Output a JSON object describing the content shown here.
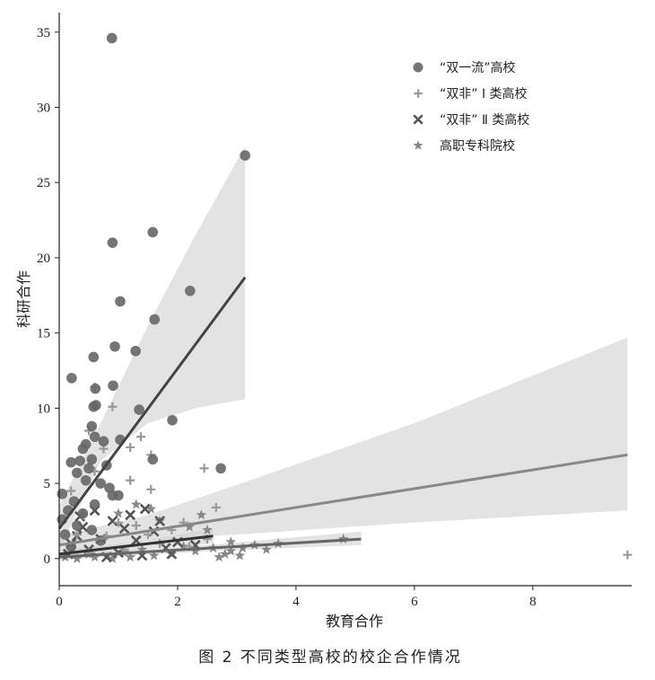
{
  "chart_data": {
    "type": "scatter",
    "title": "",
    "caption": "图 2   不同类型高校的校企合作情况",
    "xlabel": "教育合作",
    "ylabel": "科研合作",
    "xlim": [
      0,
      9.67
    ],
    "ylim": [
      -1.8,
      36.3
    ],
    "xticks": [
      0,
      2,
      4,
      6,
      8
    ],
    "yticks": [
      0,
      5,
      10,
      15,
      20,
      25,
      30,
      35
    ],
    "grid": false,
    "legend_position": "top-right",
    "series": [
      {
        "name": "“双一流”高校",
        "marker": "circle",
        "color": "#666666",
        "line_color": "#444444",
        "fit": [
          [
            0,
            2.0
          ],
          [
            3.14,
            18.7
          ]
        ],
        "ci": [
          [
            0,
            0.5,
            3.5
          ],
          [
            0.7,
            6.5,
            9.0
          ],
          [
            1.5,
            9.0,
            15.5
          ],
          [
            2.3,
            10.0,
            21.5
          ],
          [
            3.14,
            10.6,
            27.4
          ]
        ],
        "points": [
          [
            0.89,
            34.6
          ],
          [
            3.14,
            26.8
          ],
          [
            0.9,
            21.0
          ],
          [
            1.58,
            21.7
          ],
          [
            2.21,
            17.8
          ],
          [
            1.03,
            17.1
          ],
          [
            1.61,
            15.9
          ],
          [
            0.94,
            14.1
          ],
          [
            1.29,
            13.8
          ],
          [
            0.58,
            13.4
          ],
          [
            0.21,
            12.0
          ],
          [
            0.61,
            11.3
          ],
          [
            0.91,
            11.5
          ],
          [
            0.58,
            10.1
          ],
          [
            0.62,
            10.2
          ],
          [
            1.35,
            9.9
          ],
          [
            1.91,
            9.2
          ],
          [
            1.03,
            7.9
          ],
          [
            1.58,
            6.6
          ],
          [
            2.73,
            6.0
          ],
          [
            0.55,
            8.8
          ],
          [
            0.6,
            8.1
          ],
          [
            0.45,
            7.6
          ],
          [
            0.75,
            7.8
          ],
          [
            0.4,
            7.3
          ],
          [
            0.55,
            6.6
          ],
          [
            0.2,
            6.4
          ],
          [
            0.35,
            6.5
          ],
          [
            0.5,
            6.0
          ],
          [
            0.8,
            6.2
          ],
          [
            0.3,
            5.7
          ],
          [
            0.45,
            5.2
          ],
          [
            0.7,
            5.0
          ],
          [
            0.85,
            4.7
          ],
          [
            0.05,
            4.3
          ],
          [
            0.9,
            4.2
          ],
          [
            1.0,
            4.2
          ],
          [
            0.25,
            3.8
          ],
          [
            0.6,
            3.6
          ],
          [
            0.15,
            3.2
          ],
          [
            0.4,
            3.0
          ],
          [
            0.05,
            2.6
          ],
          [
            0.3,
            2.2
          ],
          [
            0.55,
            1.9
          ],
          [
            0.1,
            1.6
          ],
          [
            0.7,
            1.2
          ],
          [
            0.2,
            0.8
          ]
        ]
      },
      {
        "name": "“双非” Ⅰ 类高校",
        "marker": "plus",
        "color": "#999999",
        "line_color": "#888888",
        "fit": [
          [
            0,
            0.9
          ],
          [
            9.6,
            6.9
          ]
        ],
        "ci": [
          [
            0,
            0.3,
            1.5
          ],
          [
            1.5,
            1.2,
            2.9
          ],
          [
            3,
            1.6,
            4.9
          ],
          [
            6,
            2.4,
            9.0
          ],
          [
            9.6,
            3.2,
            14.7
          ]
        ],
        "points": [
          [
            0.9,
            10.1
          ],
          [
            1.38,
            8.1
          ],
          [
            1.2,
            7.4
          ],
          [
            0.6,
            11.4
          ],
          [
            0.5,
            8.5
          ],
          [
            0.75,
            7.3
          ],
          [
            1.55,
            6.9
          ],
          [
            2.45,
            6.0
          ],
          [
            1.55,
            4.6
          ],
          [
            1.2,
            5.2
          ],
          [
            2.65,
            3.4
          ],
          [
            0.4,
            2.9
          ],
          [
            1.9,
            1.9
          ],
          [
            2.1,
            2.4
          ],
          [
            1.3,
            2.2
          ],
          [
            0.8,
            1.5
          ],
          [
            2.5,
            1.3
          ],
          [
            1.7,
            1.0
          ],
          [
            0.3,
            1.6
          ],
          [
            1.0,
            2.4
          ],
          [
            9.6,
            0.25
          ],
          [
            0.6,
            5.8
          ],
          [
            0.2,
            4.5
          ],
          [
            1.1,
            0.6
          ],
          [
            2.2,
            0.8
          ],
          [
            0.5,
            0.4
          ],
          [
            1.5,
            1.6
          ]
        ]
      },
      {
        "name": "“双非” Ⅱ 类高校",
        "marker": "x",
        "color": "#555555",
        "line_color": "#333333",
        "fit": [
          [
            0,
            0.3
          ],
          [
            2.6,
            1.5
          ]
        ],
        "ci": [
          [
            0,
            0.0,
            0.6
          ],
          [
            1.3,
            0.6,
            1.1
          ],
          [
            2.6,
            1.0,
            2.0
          ]
        ],
        "points": [
          [
            1.45,
            3.3
          ],
          [
            1.2,
            2.9
          ],
          [
            0.6,
            3.2
          ],
          [
            0.9,
            2.5
          ],
          [
            0.4,
            2.1
          ],
          [
            1.1,
            2.0
          ],
          [
            0.3,
            1.5
          ],
          [
            0.7,
            1.3
          ],
          [
            1.3,
            1.2
          ],
          [
            1.6,
            1.8
          ],
          [
            0.2,
            1.0
          ],
          [
            0.5,
            0.6
          ],
          [
            1.8,
            0.7
          ],
          [
            2.0,
            1.1
          ],
          [
            1.0,
            0.4
          ],
          [
            0.15,
            0.3
          ],
          [
            1.4,
            0.2
          ],
          [
            2.3,
            0.9
          ],
          [
            0.8,
            0.1
          ],
          [
            1.9,
            0.3
          ],
          [
            0.35,
            2.8
          ],
          [
            1.7,
            2.5
          ]
        ]
      },
      {
        "name": "高职专科院校",
        "marker": "star",
        "color": "#888888",
        "line_color": "#666666",
        "fit": [
          [
            0,
            0.1
          ],
          [
            5.1,
            1.3
          ]
        ],
        "ci": [
          [
            0,
            -0.1,
            0.3
          ],
          [
            2.5,
            0.5,
            0.9
          ],
          [
            5.1,
            0.9,
            1.8
          ]
        ],
        "points": [
          [
            1.3,
            3.6
          ],
          [
            1.0,
            3.0
          ],
          [
            1.55,
            3.3
          ],
          [
            1.7,
            2.5
          ],
          [
            2.2,
            2.1
          ],
          [
            2.4,
            2.9
          ],
          [
            2.5,
            1.9
          ],
          [
            2.9,
            1.1
          ],
          [
            3.3,
            0.9
          ],
          [
            3.7,
            1.0
          ],
          [
            4.8,
            1.3
          ],
          [
            3.5,
            0.6
          ],
          [
            2.8,
            0.3
          ],
          [
            3.05,
            0.2
          ],
          [
            2.9,
            0.5
          ],
          [
            2.3,
            0.5
          ],
          [
            1.9,
            0.3
          ],
          [
            1.6,
            0.2
          ],
          [
            1.2,
            0.1
          ],
          [
            0.9,
            0.0
          ],
          [
            0.6,
            0.1
          ],
          [
            0.3,
            0.0
          ],
          [
            0.1,
            0.1
          ],
          [
            2.1,
            0.8
          ],
          [
            2.6,
            0.7
          ],
          [
            1.4,
            0.6
          ],
          [
            0.5,
            0.3
          ],
          [
            1.1,
            0.4
          ],
          [
            3.1,
            0.7
          ],
          [
            2.7,
            0.1
          ]
        ]
      }
    ]
  }
}
